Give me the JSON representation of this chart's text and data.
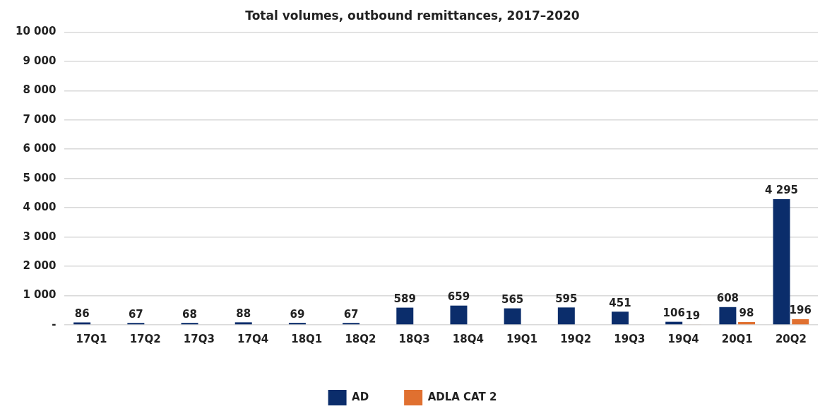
{
  "chart_data": {
    "type": "bar",
    "title": "Total volumes, outbound remittances, 2017–2020",
    "categories": [
      "17Q1",
      "17Q2",
      "17Q3",
      "17Q4",
      "18Q1",
      "18Q2",
      "18Q3",
      "18Q4",
      "19Q1",
      "19Q2",
      "19Q3",
      "19Q4",
      "20Q1",
      "20Q2"
    ],
    "series": [
      {
        "name": "AD",
        "color": "#0b2d6b",
        "values": [
          86,
          67,
          68,
          88,
          69,
          67,
          589,
          659,
          565,
          595,
          451,
          106,
          608,
          4295
        ]
      },
      {
        "name": "ADLA CAT 2",
        "color": "#e07030",
        "values": [
          null,
          null,
          null,
          null,
          null,
          null,
          null,
          null,
          null,
          null,
          null,
          19,
          98,
          196
        ]
      }
    ],
    "ylim": [
      0,
      10000
    ],
    "yticks": [
      {
        "value": 0,
        "label": "-"
      },
      {
        "value": 1000,
        "label": "1 000"
      },
      {
        "value": 2000,
        "label": "2 000"
      },
      {
        "value": 3000,
        "label": "3 000"
      },
      {
        "value": 4000,
        "label": "4 000"
      },
      {
        "value": 5000,
        "label": "5 000"
      },
      {
        "value": 6000,
        "label": "6 000"
      },
      {
        "value": 7000,
        "label": "7 000"
      },
      {
        "value": 8000,
        "label": "8 000"
      },
      {
        "value": 9000,
        "label": "9 000"
      },
      {
        "value": 10000,
        "label": "10 000"
      }
    ],
    "data_labels": true,
    "grid": "y",
    "legend": "bottom"
  }
}
